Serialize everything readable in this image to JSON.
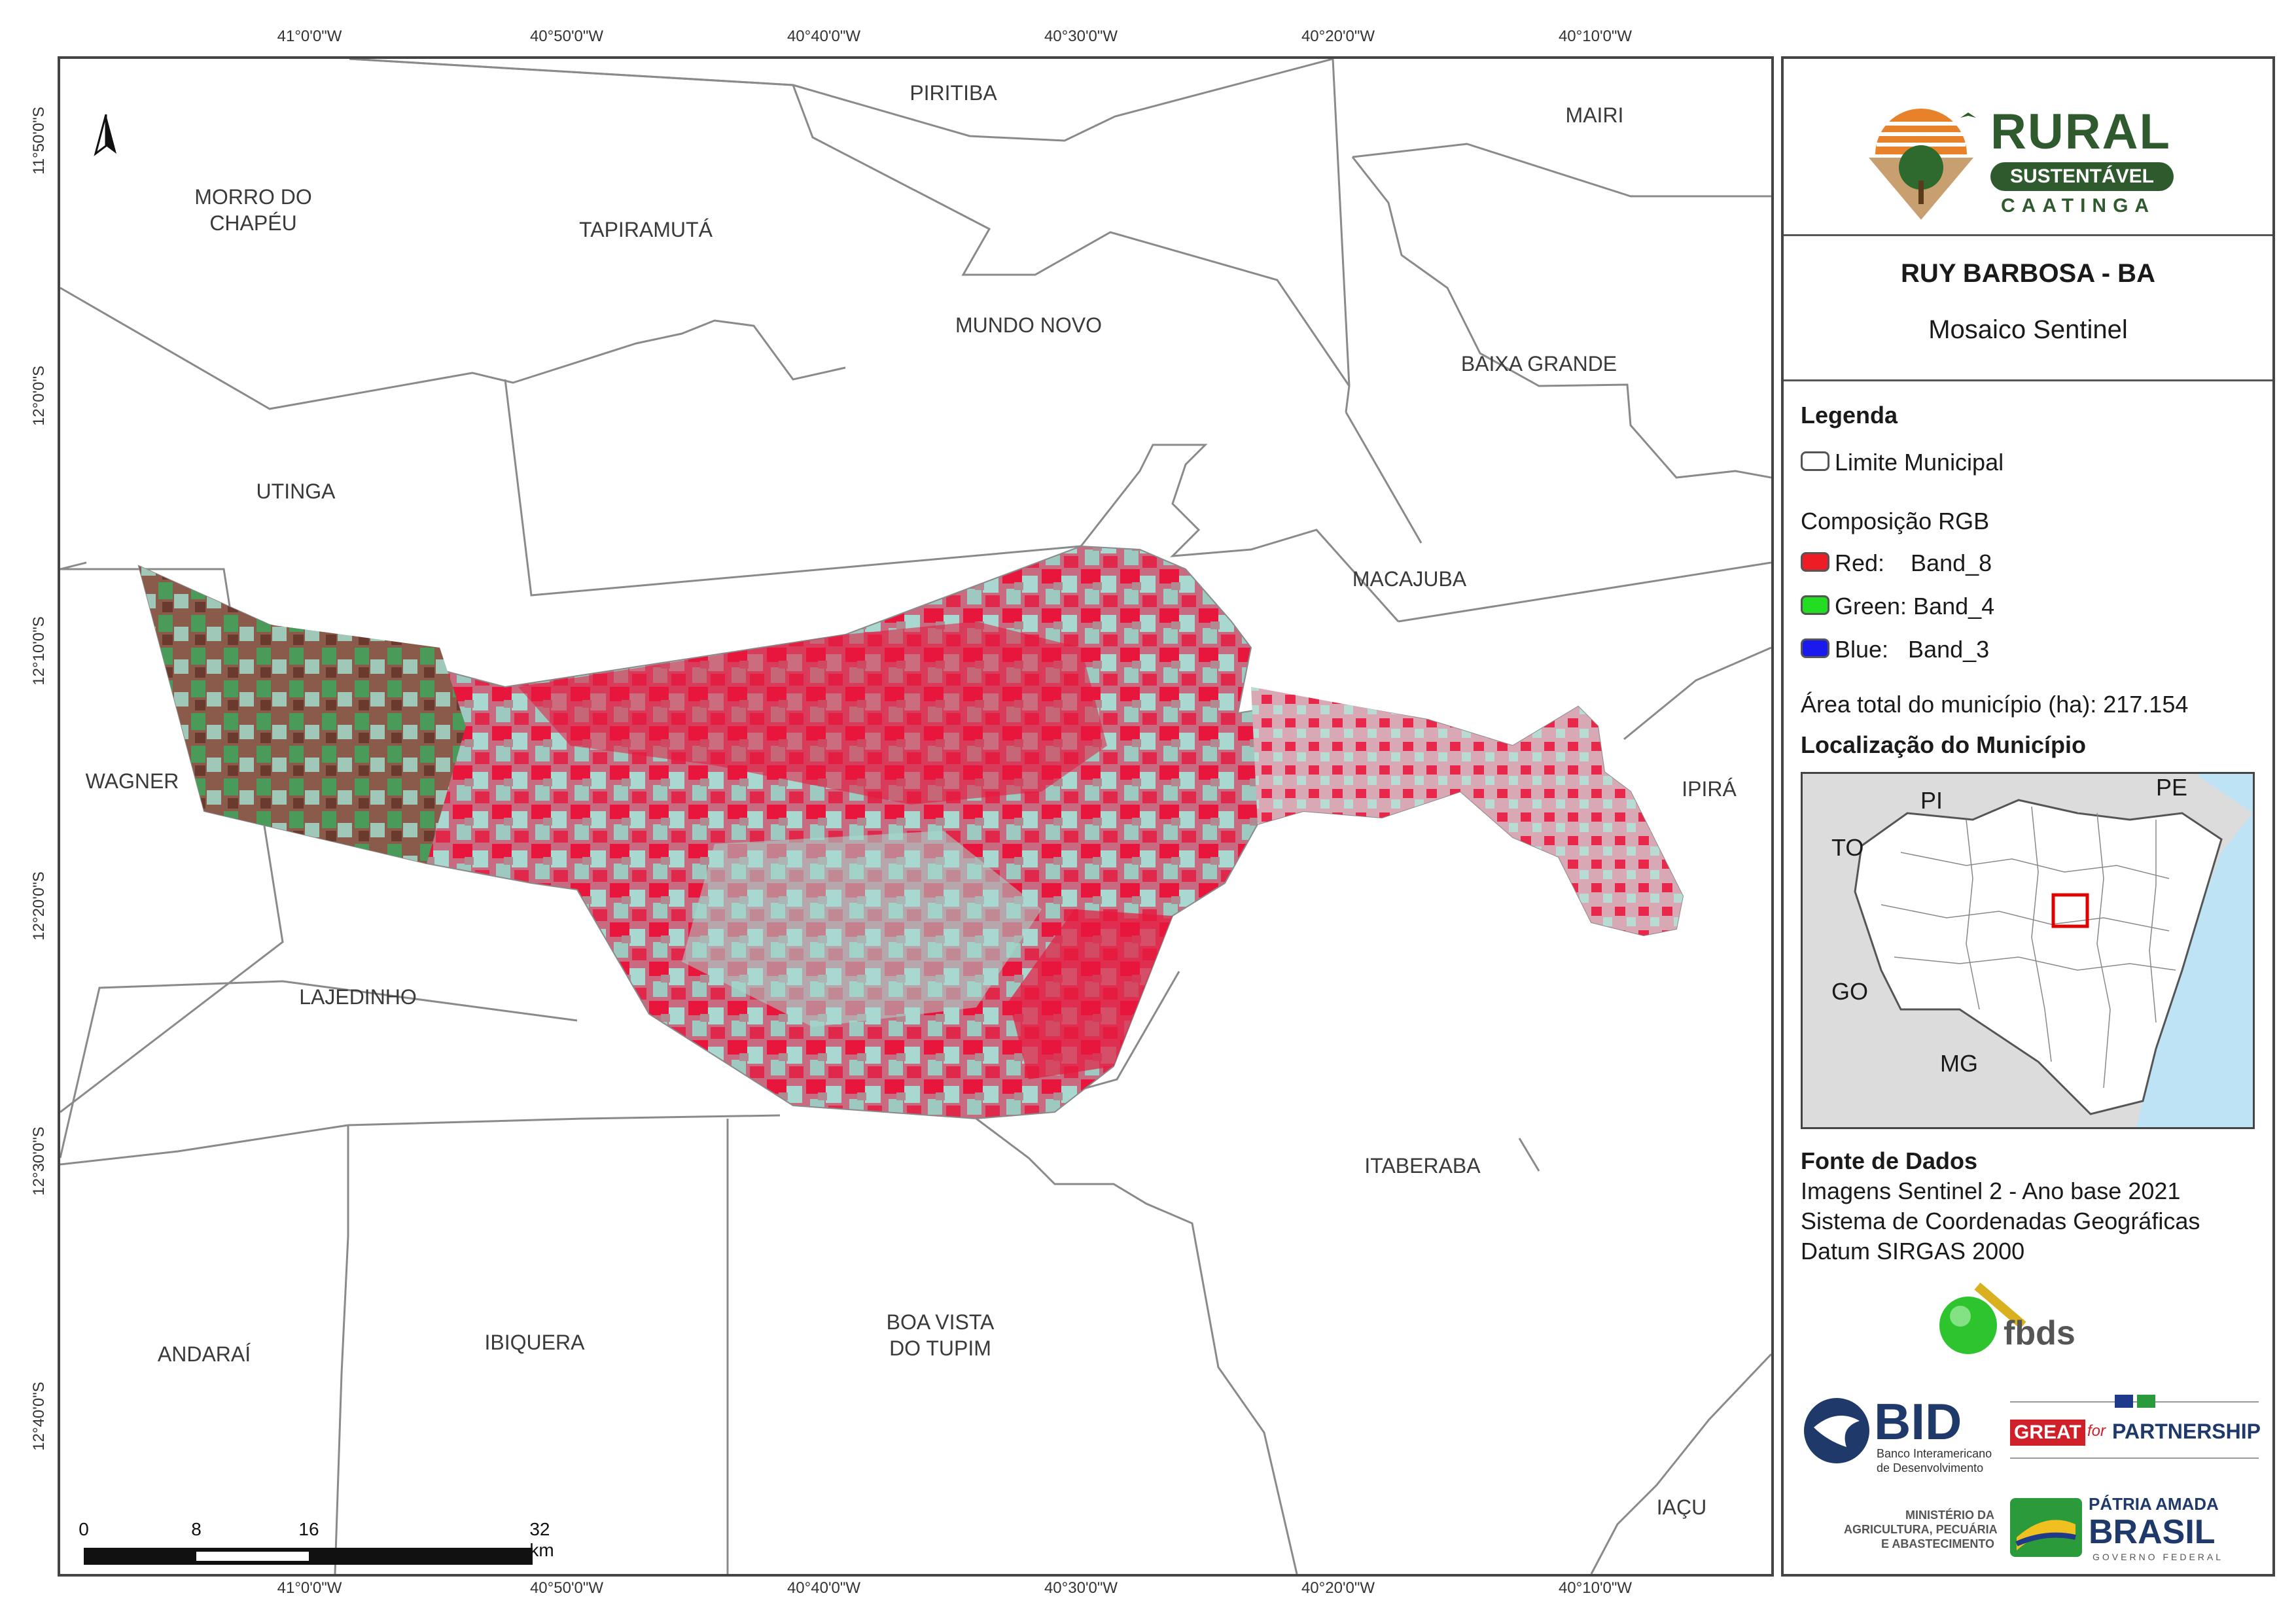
{
  "coords": {
    "top": [
      "41°0'0\"W",
      "40°50'0\"W",
      "40°40'0\"W",
      "40°30'0\"W",
      "40°20'0\"W",
      "40°10'0\"W"
    ],
    "bottom": [
      "41°0'0\"W",
      "40°50'0\"W",
      "40°40'0\"W",
      "40°30'0\"W",
      "40°20'0\"W",
      "40°10'0\"W"
    ],
    "left": [
      "11°50'0\"S",
      "12°0'0\"S",
      "12°10'0\"S",
      "12°20'0\"S",
      "12°30'0\"S",
      "12°40'0\"S"
    ]
  },
  "north_label": "N",
  "municipalities": {
    "piritiba": "PIRITIBA",
    "mairi": "MAIRI",
    "morro": "MORRO DO\nCHAPÉU",
    "tapiramuta": "TAPIRAMUTÁ",
    "mundo_novo": "MUNDO NOVO",
    "baixa_grande": "BAIXA GRANDE",
    "utinga": "UTINGA",
    "macajuba": "MACAJUBA",
    "wagner": "WAGNER",
    "ipira": "IPIRÁ",
    "lajedinho": "LAJEDINHO",
    "itaberaba": "ITABERABA",
    "andarai": "ANDARAÍ",
    "ibiquera": "IBIQUERA",
    "boa_vista": "BOA VISTA\nDO TUPIM",
    "iacu": "IAÇU"
  },
  "scale": {
    "ticks": [
      "0",
      "8",
      "16",
      "32 km"
    ]
  },
  "panel": {
    "logo": {
      "line1": "RURAL",
      "line2": "SUSTENTÁVEL",
      "line3": "CAATINGA"
    },
    "title": "RUY BARBOSA - BA",
    "subtitle": "Mosaico Sentinel",
    "legend_title": "Legenda",
    "legend_limit": "Limite Municipal",
    "rgb_title": "Composição RGB",
    "rgb": [
      {
        "label": "Red:    Band_8",
        "color": "#ee1c24"
      },
      {
        "label": "Green: Band_4",
        "color": "#22dd22"
      },
      {
        "label": "Blue:   Band_3",
        "color": "#1a1aee"
      }
    ],
    "area": "Área total do município (ha): 217.154",
    "location_title": "Localização do Município",
    "states": {
      "pi": "PI",
      "pe": "PE",
      "to": "TO",
      "go": "GO",
      "mg": "MG"
    },
    "source_title": "Fonte de Dados",
    "source_lines": [
      "Imagens Sentinel 2 - Ano base 2021",
      "Sistema de Coordenadas Geográficas",
      "Datum SIRGAS 2000"
    ],
    "fbds": "fbds",
    "bid": "BID",
    "bid_sub1": "Banco Interamericano",
    "bid_sub2": "de Desenvolvimento",
    "great": "GREAT",
    "for": "for",
    "partnership": "PARTNERSHIP",
    "ministerio1": "MINISTÉRIO DA",
    "ministerio2": "AGRICULTURA, PECUÁRIA",
    "ministerio3": "E ABASTECIMENTO",
    "patria": "PÁTRIA AMADA",
    "brasil": "BRASIL",
    "governo": "GOVERNO FEDERAL"
  },
  "colors": {
    "frame": "#444444",
    "boundary": "#8a8a8a",
    "red_band": "#e8163c",
    "cyan_band": "#a8d8d0",
    "green_band": "#4a9a5a",
    "brown_band": "#8a4a3a",
    "sea": "#bde3f5",
    "logo_green": "#2e5a2e"
  }
}
